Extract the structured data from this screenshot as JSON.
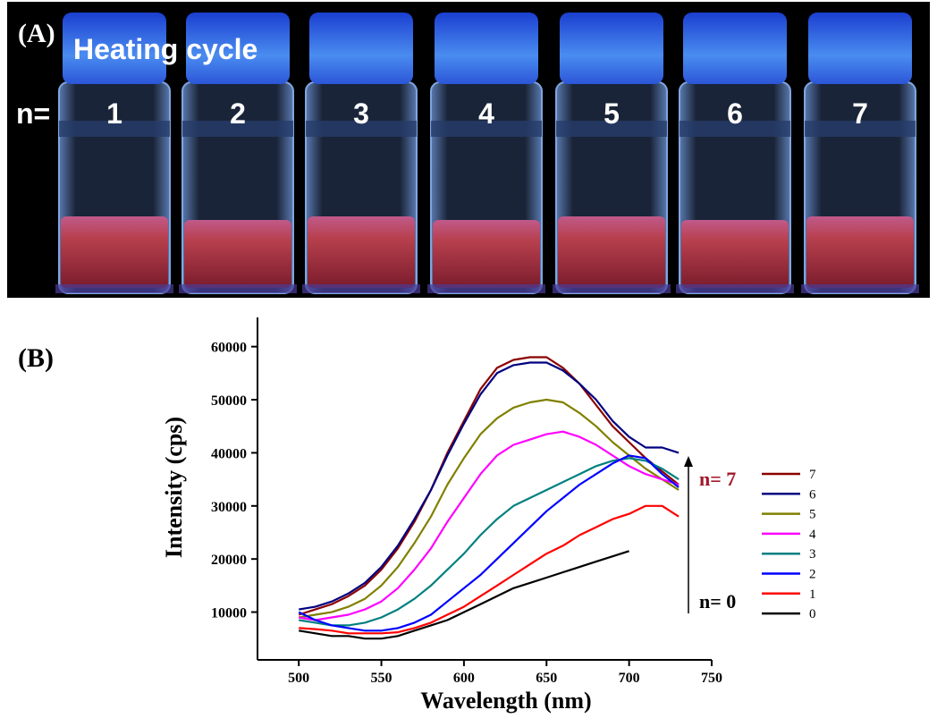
{
  "panel_a": {
    "label": "(A)",
    "title": "Heating cycle",
    "n_label": "n=",
    "vials": [
      "1",
      "2",
      "3",
      "4",
      "5",
      "6",
      "7"
    ]
  },
  "chart_data": {
    "type": "line",
    "panel_label": "(B)",
    "x_label": "Wavelength (nm)",
    "y_label": "Intensity (cps)",
    "x": [
      500,
      510,
      520,
      530,
      540,
      550,
      560,
      570,
      580,
      590,
      600,
      610,
      620,
      630,
      640,
      650,
      660,
      670,
      680,
      690,
      700,
      710,
      720,
      730
    ],
    "xlim": [
      475,
      750
    ],
    "xticks": [
      500,
      550,
      600,
      650,
      700,
      750
    ],
    "ylim": [
      1000,
      65500
    ],
    "yticks": [
      10000,
      20000,
      30000,
      40000,
      50000,
      60000
    ],
    "legend": "right",
    "series": [
      {
        "name": "7",
        "color": "#8b0000",
        "values": [
          9500,
          10500,
          11500,
          13000,
          15000,
          18000,
          22000,
          27000,
          33000,
          40000,
          46000,
          52000,
          56000,
          57500,
          58000,
          58000,
          56000,
          53000,
          49000,
          45000,
          42000,
          39000,
          36500,
          34000
        ]
      },
      {
        "name": "6",
        "color": "#000080",
        "values": [
          10500,
          11000,
          12000,
          13500,
          15500,
          18500,
          22500,
          27500,
          33000,
          39500,
          45500,
          51000,
          55000,
          56500,
          57000,
          57000,
          55500,
          53000,
          50000,
          46000,
          43000,
          41000,
          41000,
          40000
        ]
      },
      {
        "name": "5",
        "color": "#808000",
        "values": [
          9000,
          9500,
          10000,
          11000,
          12500,
          15000,
          18500,
          23000,
          28000,
          34000,
          39000,
          43500,
          46500,
          48500,
          49500,
          50000,
          49500,
          47500,
          45000,
          42000,
          39500,
          37000,
          35000,
          33000
        ]
      },
      {
        "name": "4",
        "color": "#ff00ff",
        "values": [
          9000,
          8500,
          9000,
          9500,
          10500,
          12000,
          14500,
          18000,
          22000,
          27000,
          31500,
          36000,
          39500,
          41500,
          42500,
          43500,
          44000,
          43000,
          41500,
          39500,
          37500,
          36000,
          35000,
          34000
        ]
      },
      {
        "name": "3",
        "color": "#008080",
        "values": [
          8500,
          8000,
          7500,
          7500,
          8000,
          9000,
          10500,
          12500,
          15000,
          18000,
          21000,
          24500,
          27500,
          30000,
          31500,
          33000,
          34500,
          36000,
          37500,
          38500,
          39000,
          38500,
          37000,
          35000
        ]
      },
      {
        "name": "2",
        "color": "#0000ff",
        "values": [
          10000,
          8500,
          7500,
          7000,
          6500,
          6500,
          7000,
          8000,
          9500,
          12000,
          14500,
          17000,
          20000,
          23000,
          26000,
          29000,
          31500,
          34000,
          36000,
          38000,
          39500,
          39000,
          36000,
          33500
        ]
      },
      {
        "name": "1",
        "color": "#ff0000",
        "values": [
          7000,
          6800,
          6500,
          6000,
          6000,
          6000,
          6200,
          7000,
          8000,
          9500,
          11000,
          13000,
          15000,
          17000,
          19000,
          21000,
          22500,
          24500,
          26000,
          27500,
          28500,
          30000,
          30000,
          28000
        ]
      },
      {
        "name": "0",
        "color": "#000000",
        "values": [
          6500,
          6000,
          5500,
          5500,
          5000,
          5000,
          5500,
          6500,
          7500,
          8500,
          10000,
          11500,
          13000,
          14500,
          15500,
          16500,
          17500,
          18500,
          19500,
          20500,
          21500,
          null,
          null,
          null
        ]
      }
    ],
    "annotations": [
      {
        "text": "n= 7",
        "color": "#a0182a"
      },
      {
        "text": "n= 0",
        "color": "#000000"
      }
    ]
  }
}
